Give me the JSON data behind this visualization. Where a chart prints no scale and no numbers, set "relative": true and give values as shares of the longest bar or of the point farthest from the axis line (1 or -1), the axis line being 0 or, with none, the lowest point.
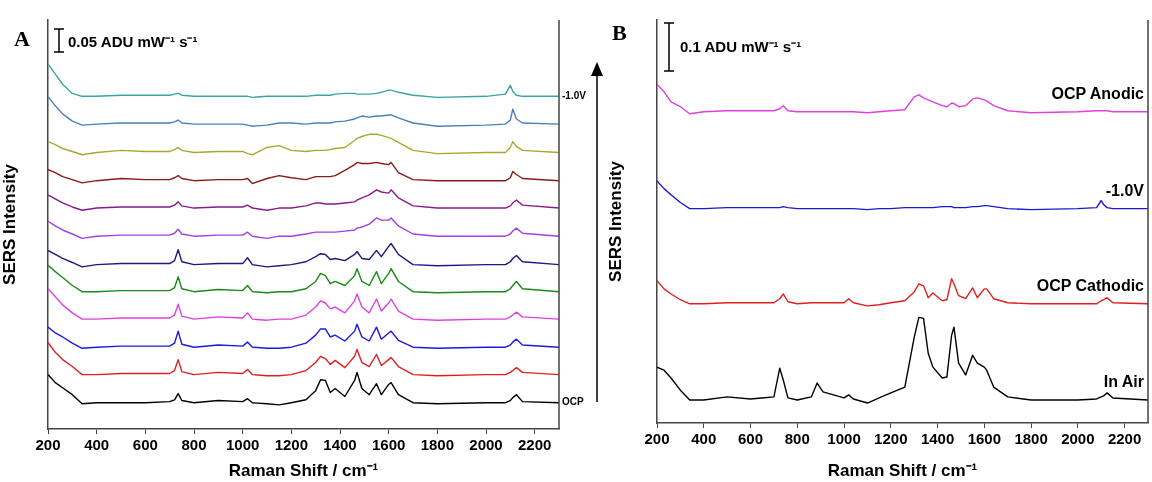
{
  "chart_data": [
    {
      "type": "line",
      "title": "A",
      "xlabel": "Raman Shift / cm⁻¹",
      "ylabel": "SERS Intensity",
      "relative": true,
      "marker": "none",
      "annotations": [
        "0.05 ADU mW⁻¹ s⁻¹"
      ],
      "xlim": [
        200,
        2300
      ],
      "xticks": [
        200,
        400,
        600,
        800,
        1000,
        1200,
        1400,
        1600,
        1800,
        2000,
        2200
      ],
      "x": [
        200,
        230,
        260,
        300,
        340,
        400,
        500,
        600,
        700,
        720,
        735,
        750,
        800,
        900,
        1000,
        1020,
        1040,
        1100,
        1150,
        1200,
        1260,
        1300,
        1320,
        1340,
        1360,
        1380,
        1420,
        1460,
        1470,
        1490,
        1520,
        1550,
        1570,
        1600,
        1610,
        1640,
        1700,
        1800,
        2000,
        2080,
        2100,
        2110,
        2125,
        2150,
        2300
      ],
      "series": [
        {
          "name": "-1.0V",
          "color": "#3aa6a0",
          "values": [
            1.0,
            0.972,
            0.944,
            0.919,
            0.911,
            0.911,
            0.914,
            0.914,
            0.914,
            0.917,
            0.919,
            0.914,
            0.911,
            0.911,
            0.911,
            0.911,
            0.908,
            0.911,
            0.911,
            0.911,
            0.911,
            0.914,
            0.914,
            0.914,
            0.914,
            0.917,
            0.919,
            0.919,
            0.917,
            0.917,
            0.917,
            0.919,
            0.922,
            0.928,
            0.928,
            0.922,
            0.914,
            0.908,
            0.911,
            0.917,
            0.941,
            0.925,
            0.914,
            0.911,
            0.911
          ]
        },
        {
          "color": "#4a80b8",
          "values": [
            0.91,
            0.885,
            0.863,
            0.843,
            0.832,
            0.835,
            0.838,
            0.838,
            0.838,
            0.841,
            0.846,
            0.838,
            0.835,
            0.835,
            0.835,
            0.832,
            0.829,
            0.832,
            0.838,
            0.838,
            0.835,
            0.838,
            0.838,
            0.838,
            0.838,
            0.841,
            0.843,
            0.849,
            0.852,
            0.857,
            0.854,
            0.857,
            0.857,
            0.86,
            0.86,
            0.852,
            0.838,
            0.829,
            0.832,
            0.835,
            0.846,
            0.876,
            0.849,
            0.838,
            0.835
          ]
        },
        {
          "color": "#a8a830",
          "values": [
            0.787,
            0.779,
            0.768,
            0.76,
            0.751,
            0.757,
            0.763,
            0.76,
            0.76,
            0.765,
            0.771,
            0.763,
            0.757,
            0.76,
            0.76,
            0.754,
            0.751,
            0.771,
            0.776,
            0.763,
            0.76,
            0.763,
            0.763,
            0.763,
            0.765,
            0.768,
            0.771,
            0.79,
            0.796,
            0.801,
            0.807,
            0.807,
            0.804,
            0.798,
            0.796,
            0.785,
            0.763,
            0.754,
            0.757,
            0.757,
            0.771,
            0.787,
            0.774,
            0.763,
            0.757
          ]
        },
        {
          "color": "#8b1a1a",
          "values": [
            0.71,
            0.702,
            0.691,
            0.683,
            0.674,
            0.68,
            0.686,
            0.683,
            0.683,
            0.688,
            0.694,
            0.686,
            0.68,
            0.683,
            0.683,
            0.686,
            0.672,
            0.686,
            0.694,
            0.688,
            0.683,
            0.691,
            0.691,
            0.691,
            0.691,
            0.694,
            0.708,
            0.724,
            0.73,
            0.727,
            0.727,
            0.73,
            0.727,
            0.724,
            0.73,
            0.702,
            0.683,
            0.68,
            0.68,
            0.68,
            0.688,
            0.705,
            0.697,
            0.686,
            0.68
          ]
        },
        {
          "color": "#8b1a8b",
          "values": [
            0.641,
            0.63,
            0.619,
            0.608,
            0.599,
            0.605,
            0.608,
            0.608,
            0.608,
            0.613,
            0.622,
            0.611,
            0.605,
            0.608,
            0.608,
            0.613,
            0.605,
            0.599,
            0.605,
            0.605,
            0.611,
            0.619,
            0.619,
            0.616,
            0.616,
            0.616,
            0.619,
            0.622,
            0.627,
            0.633,
            0.641,
            0.655,
            0.649,
            0.646,
            0.655,
            0.633,
            0.611,
            0.605,
            0.605,
            0.605,
            0.611,
            0.619,
            0.627,
            0.613,
            0.605
          ]
        },
        {
          "color": "#a040e0",
          "values": [
            0.569,
            0.556,
            0.545,
            0.534,
            0.522,
            0.528,
            0.531,
            0.531,
            0.531,
            0.536,
            0.547,
            0.534,
            0.528,
            0.531,
            0.531,
            0.539,
            0.528,
            0.522,
            0.528,
            0.528,
            0.534,
            0.539,
            0.539,
            0.539,
            0.539,
            0.539,
            0.542,
            0.545,
            0.55,
            0.553,
            0.561,
            0.578,
            0.572,
            0.572,
            0.578,
            0.556,
            0.534,
            0.528,
            0.528,
            0.528,
            0.534,
            0.542,
            0.55,
            0.536,
            0.528
          ]
        },
        {
          "color": "#1a1a80",
          "values": [
            0.489,
            0.478,
            0.467,
            0.456,
            0.444,
            0.45,
            0.453,
            0.453,
            0.453,
            0.461,
            0.491,
            0.458,
            0.45,
            0.453,
            0.453,
            0.469,
            0.45,
            0.444,
            0.447,
            0.45,
            0.458,
            0.472,
            0.48,
            0.478,
            0.464,
            0.467,
            0.461,
            0.478,
            0.486,
            0.467,
            0.464,
            0.489,
            0.472,
            0.5,
            0.508,
            0.478,
            0.45,
            0.447,
            0.45,
            0.45,
            0.458,
            0.467,
            0.475,
            0.458,
            0.45
          ]
        },
        {
          "color": "#1a8a1a",
          "values": [
            0.448,
            0.431,
            0.415,
            0.393,
            0.376,
            0.376,
            0.379,
            0.379,
            0.379,
            0.387,
            0.417,
            0.384,
            0.376,
            0.382,
            0.379,
            0.393,
            0.376,
            0.373,
            0.376,
            0.376,
            0.384,
            0.404,
            0.426,
            0.42,
            0.398,
            0.404,
            0.393,
            0.42,
            0.439,
            0.404,
            0.393,
            0.431,
            0.398,
            0.426,
            0.439,
            0.404,
            0.376,
            0.373,
            0.376,
            0.376,
            0.384,
            0.393,
            0.404,
            0.384,
            0.376
          ]
        },
        {
          "color": "#e040e0",
          "values": [
            0.384,
            0.362,
            0.34,
            0.318,
            0.301,
            0.301,
            0.304,
            0.304,
            0.304,
            0.312,
            0.342,
            0.309,
            0.301,
            0.307,
            0.304,
            0.318,
            0.301,
            0.298,
            0.301,
            0.301,
            0.312,
            0.334,
            0.351,
            0.345,
            0.329,
            0.334,
            0.318,
            0.351,
            0.37,
            0.334,
            0.318,
            0.356,
            0.323,
            0.345,
            0.356,
            0.323,
            0.301,
            0.298,
            0.301,
            0.301,
            0.307,
            0.312,
            0.32,
            0.307,
            0.301
          ]
        },
        {
          "color": "#1a1ae0",
          "values": [
            0.279,
            0.263,
            0.252,
            0.235,
            0.221,
            0.224,
            0.227,
            0.227,
            0.227,
            0.235,
            0.268,
            0.232,
            0.224,
            0.23,
            0.227,
            0.238,
            0.224,
            0.221,
            0.221,
            0.224,
            0.235,
            0.257,
            0.274,
            0.274,
            0.252,
            0.257,
            0.241,
            0.268,
            0.287,
            0.252,
            0.241,
            0.279,
            0.246,
            0.263,
            0.268,
            0.243,
            0.224,
            0.221,
            0.224,
            0.224,
            0.23,
            0.238,
            0.246,
            0.23,
            0.224
          ]
        },
        {
          "color": "#e02020",
          "values": [
            0.237,
            0.21,
            0.19,
            0.171,
            0.149,
            0.149,
            0.152,
            0.152,
            0.152,
            0.16,
            0.19,
            0.157,
            0.149,
            0.155,
            0.152,
            0.163,
            0.149,
            0.146,
            0.146,
            0.149,
            0.16,
            0.182,
            0.199,
            0.193,
            0.177,
            0.188,
            0.168,
            0.199,
            0.218,
            0.182,
            0.171,
            0.204,
            0.174,
            0.19,
            0.196,
            0.171,
            0.149,
            0.146,
            0.149,
            0.149,
            0.155,
            0.16,
            0.168,
            0.155,
            0.149
          ]
        },
        {
          "name": "OCP",
          "color": "#000000",
          "values": [
            0.149,
            0.127,
            0.113,
            0.094,
            0.069,
            0.072,
            0.072,
            0.072,
            0.075,
            0.08,
            0.097,
            0.078,
            0.072,
            0.078,
            0.075,
            0.083,
            0.072,
            0.069,
            0.066,
            0.072,
            0.08,
            0.105,
            0.135,
            0.133,
            0.1,
            0.111,
            0.089,
            0.133,
            0.155,
            0.111,
            0.094,
            0.124,
            0.094,
            0.122,
            0.127,
            0.094,
            0.072,
            0.069,
            0.072,
            0.072,
            0.078,
            0.086,
            0.094,
            0.075,
            0.072
          ]
        }
      ]
    },
    {
      "type": "line",
      "title": "B",
      "xlabel": "Raman Shift / cm⁻¹",
      "ylabel": "SERS Intensity",
      "relative": true,
      "marker": "none",
      "annotations": [
        "0.1 ADU mW⁻¹ s⁻¹"
      ],
      "xlim": [
        200,
        2300
      ],
      "xticks": [
        200,
        400,
        600,
        800,
        1000,
        1200,
        1400,
        1600,
        1800,
        2000,
        2200
      ],
      "x": [
        200,
        230,
        260,
        300,
        340,
        400,
        500,
        600,
        700,
        725,
        740,
        760,
        800,
        860,
        885,
        910,
        1000,
        1020,
        1040,
        1100,
        1150,
        1200,
        1260,
        1300,
        1320,
        1340,
        1360,
        1380,
        1420,
        1440,
        1460,
        1470,
        1490,
        1520,
        1550,
        1570,
        1600,
        1610,
        1640,
        1700,
        1800,
        2000,
        2080,
        2100,
        2110,
        2125,
        2150,
        2300
      ],
      "series": [
        {
          "name": "OCP Anodic",
          "color": "#e040e0",
          "values": [
            1.0,
            0.978,
            0.948,
            0.934,
            0.913,
            0.919,
            0.922,
            0.922,
            0.922,
            0.928,
            0.937,
            0.922,
            0.919,
            0.919,
            0.919,
            0.919,
            0.919,
            0.919,
            0.919,
            0.916,
            0.919,
            0.922,
            0.925,
            0.963,
            0.969,
            0.96,
            0.954,
            0.948,
            0.937,
            0.934,
            0.945,
            0.943,
            0.934,
            0.937,
            0.957,
            0.96,
            0.954,
            0.951,
            0.937,
            0.922,
            0.916,
            0.919,
            0.922,
            0.922,
            0.922,
            0.922,
            0.919,
            0.919
          ]
        },
        {
          "name": "-1.0V",
          "color": "#1a1ad0",
          "values": [
            0.715,
            0.692,
            0.674,
            0.651,
            0.633,
            0.633,
            0.636,
            0.636,
            0.636,
            0.636,
            0.639,
            0.636,
            0.633,
            0.633,
            0.633,
            0.633,
            0.633,
            0.633,
            0.633,
            0.63,
            0.633,
            0.633,
            0.636,
            0.636,
            0.636,
            0.636,
            0.636,
            0.636,
            0.639,
            0.639,
            0.639,
            0.636,
            0.636,
            0.636,
            0.639,
            0.639,
            0.642,
            0.642,
            0.639,
            0.633,
            0.63,
            0.633,
            0.636,
            0.657,
            0.645,
            0.636,
            0.633,
            0.633
          ]
        },
        {
          "name": "OCP Cathodic",
          "color": "#e02020",
          "values": [
            0.42,
            0.396,
            0.381,
            0.364,
            0.352,
            0.352,
            0.355,
            0.355,
            0.355,
            0.367,
            0.381,
            0.358,
            0.352,
            0.355,
            0.355,
            0.355,
            0.355,
            0.367,
            0.355,
            0.346,
            0.349,
            0.355,
            0.361,
            0.387,
            0.411,
            0.405,
            0.37,
            0.384,
            0.361,
            0.364,
            0.426,
            0.411,
            0.376,
            0.367,
            0.399,
            0.37,
            0.396,
            0.396,
            0.367,
            0.355,
            0.352,
            0.352,
            0.352,
            0.361,
            0.364,
            0.37,
            0.355,
            0.352
          ]
        },
        {
          "name": "In Air",
          "color": "#000000",
          "values": [
            0.165,
            0.156,
            0.133,
            0.097,
            0.068,
            0.068,
            0.077,
            0.071,
            0.077,
            0.162,
            0.127,
            0.074,
            0.068,
            0.077,
            0.118,
            0.092,
            0.074,
            0.083,
            0.071,
            0.059,
            0.074,
            0.089,
            0.106,
            0.253,
            0.312,
            0.309,
            0.206,
            0.165,
            0.133,
            0.136,
            0.259,
            0.283,
            0.177,
            0.142,
            0.2,
            0.177,
            0.165,
            0.156,
            0.106,
            0.077,
            0.068,
            0.068,
            0.071,
            0.077,
            0.08,
            0.089,
            0.074,
            0.068
          ]
        }
      ]
    }
  ]
}
